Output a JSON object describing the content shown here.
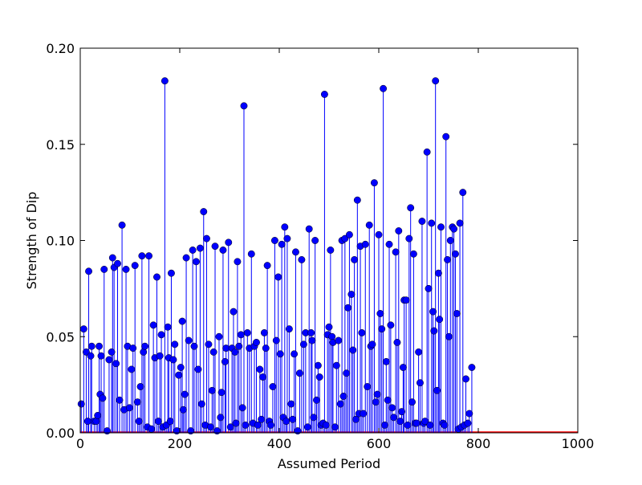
{
  "chart_data": {
    "type": "stem",
    "xlabel": "Assumed Period",
    "ylabel": "Strength of Dip",
    "xlim": [
      0,
      1000
    ],
    "ylim": [
      0,
      0.2
    ],
    "x_ticks": [
      0,
      200,
      400,
      600,
      800,
      1000
    ],
    "y_ticks": [
      0.0,
      0.05,
      0.1,
      0.15,
      0.2
    ],
    "x_tick_labels": [
      "0",
      "200",
      "400",
      "600",
      "800",
      "1000"
    ],
    "y_tick_labels": [
      "0.00",
      "0.05",
      "0.10",
      "0.15",
      "0.20"
    ],
    "grid": false,
    "series_color": "#0000ff",
    "points": [
      [
        2,
        0.015
      ],
      [
        7,
        0.054
      ],
      [
        12,
        0.042
      ],
      [
        15,
        0.006
      ],
      [
        17,
        0.084
      ],
      [
        21,
        0.04
      ],
      [
        23,
        0.045
      ],
      [
        28,
        0.006
      ],
      [
        32,
        0.006
      ],
      [
        35,
        0.009
      ],
      [
        38,
        0.045
      ],
      [
        40,
        0.02
      ],
      [
        42,
        0.04
      ],
      [
        45,
        0.018
      ],
      [
        48,
        0.085
      ],
      [
        54,
        0.001
      ],
      [
        58,
        0.038
      ],
      [
        63,
        0.042
      ],
      [
        65,
        0.091
      ],
      [
        68,
        0.086
      ],
      [
        72,
        0.036
      ],
      [
        75,
        0.088
      ],
      [
        79,
        0.017
      ],
      [
        84,
        0.108
      ],
      [
        88,
        0.012
      ],
      [
        92,
        0.085
      ],
      [
        95,
        0.045
      ],
      [
        99,
        0.013
      ],
      [
        103,
        0.033
      ],
      [
        106,
        0.044
      ],
      [
        110,
        0.087
      ],
      [
        115,
        0.016
      ],
      [
        118,
        0.006
      ],
      [
        121,
        0.024
      ],
      [
        124,
        0.092
      ],
      [
        127,
        0.042
      ],
      [
        130,
        0.045
      ],
      [
        135,
        0.003
      ],
      [
        138,
        0.092
      ],
      [
        143,
        0.002
      ],
      [
        147,
        0.056
      ],
      [
        150,
        0.039
      ],
      [
        154,
        0.081
      ],
      [
        157,
        0.006
      ],
      [
        160,
        0.04
      ],
      [
        163,
        0.051
      ],
      [
        166,
        0.003
      ],
      [
        170,
        0.183
      ],
      [
        173,
        0.004
      ],
      [
        176,
        0.055
      ],
      [
        178,
        0.039
      ],
      [
        181,
        0.006
      ],
      [
        183,
        0.083
      ],
      [
        187,
        0.038
      ],
      [
        190,
        0.046
      ],
      [
        194,
        0.001
      ],
      [
        198,
        0.03
      ],
      [
        202,
        0.034
      ],
      [
        205,
        0.058
      ],
      [
        207,
        0.012
      ],
      [
        210,
        0.02
      ],
      [
        213,
        0.091
      ],
      [
        218,
        0.048
      ],
      [
        222,
        0.001
      ],
      [
        226,
        0.095
      ],
      [
        229,
        0.045
      ],
      [
        233,
        0.089
      ],
      [
        237,
        0.033
      ],
      [
        241,
        0.096
      ],
      [
        244,
        0.015
      ],
      [
        248,
        0.115
      ],
      [
        251,
        0.004
      ],
      [
        254,
        0.101
      ],
      [
        258,
        0.046
      ],
      [
        262,
        0.003
      ],
      [
        265,
        0.022
      ],
      [
        268,
        0.042
      ],
      [
        271,
        0.097
      ],
      [
        275,
        0.001
      ],
      [
        279,
        0.05
      ],
      [
        282,
        0.008
      ],
      [
        284,
        0.021
      ],
      [
        287,
        0.095
      ],
      [
        291,
        0.037
      ],
      [
        293,
        0.044
      ],
      [
        298,
        0.099
      ],
      [
        302,
        0.003
      ],
      [
        305,
        0.044
      ],
      [
        308,
        0.063
      ],
      [
        311,
        0.042
      ],
      [
        313,
        0.005
      ],
      [
        316,
        0.089
      ],
      [
        319,
        0.045
      ],
      [
        323,
        0.051
      ],
      [
        326,
        0.013
      ],
      [
        329,
        0.17
      ],
      [
        332,
        0.004
      ],
      [
        336,
        0.052
      ],
      [
        340,
        0.044
      ],
      [
        344,
        0.093
      ],
      [
        347,
        0.005
      ],
      [
        350,
        0.045
      ],
      [
        354,
        0.047
      ],
      [
        357,
        0.004
      ],
      [
        361,
        0.033
      ],
      [
        364,
        0.007
      ],
      [
        367,
        0.029
      ],
      [
        370,
        0.052
      ],
      [
        373,
        0.044
      ],
      [
        376,
        0.087
      ],
      [
        380,
        0.006
      ],
      [
        383,
        0.004
      ],
      [
        387,
        0.024
      ],
      [
        391,
        0.1
      ],
      [
        394,
        0.048
      ],
      [
        398,
        0.081
      ],
      [
        402,
        0.041
      ],
      [
        405,
        0.098
      ],
      [
        408,
        0.008
      ],
      [
        411,
        0.107
      ],
      [
        414,
        0.006
      ],
      [
        416,
        0.101
      ],
      [
        420,
        0.054
      ],
      [
        424,
        0.015
      ],
      [
        427,
        0.007
      ],
      [
        430,
        0.041
      ],
      [
        433,
        0.094
      ],
      [
        437,
        0.001
      ],
      [
        441,
        0.031
      ],
      [
        445,
        0.09
      ],
      [
        449,
        0.046
      ],
      [
        453,
        0.052
      ],
      [
        457,
        0.003
      ],
      [
        460,
        0.106
      ],
      [
        464,
        0.052
      ],
      [
        466,
        0.048
      ],
      [
        469,
        0.008
      ],
      [
        472,
        0.1
      ],
      [
        475,
        0.017
      ],
      [
        478,
        0.035
      ],
      [
        481,
        0.029
      ],
      [
        484,
        0.004
      ],
      [
        488,
        0.005
      ],
      [
        491,
        0.176
      ],
      [
        494,
        0.004
      ],
      [
        497,
        0.051
      ],
      [
        500,
        0.055
      ],
      [
        503,
        0.095
      ],
      [
        506,
        0.05
      ],
      [
        508,
        0.047
      ],
      [
        512,
        0.003
      ],
      [
        515,
        0.035
      ],
      [
        519,
        0.048
      ],
      [
        523,
        0.015
      ],
      [
        526,
        0.1
      ],
      [
        529,
        0.019
      ],
      [
        532,
        0.101
      ],
      [
        535,
        0.031
      ],
      [
        538,
        0.065
      ],
      [
        541,
        0.103
      ],
      [
        545,
        0.072
      ],
      [
        548,
        0.043
      ],
      [
        551,
        0.09
      ],
      [
        554,
        0.007
      ],
      [
        557,
        0.121
      ],
      [
        560,
        0.01
      ],
      [
        563,
        0.097
      ],
      [
        566,
        0.052
      ],
      [
        569,
        0.01
      ],
      [
        573,
        0.098
      ],
      [
        577,
        0.024
      ],
      [
        581,
        0.108
      ],
      [
        584,
        0.045
      ],
      [
        587,
        0.046
      ],
      [
        591,
        0.13
      ],
      [
        594,
        0.016
      ],
      [
        597,
        0.02
      ],
      [
        600,
        0.103
      ],
      [
        603,
        0.062
      ],
      [
        606,
        0.054
      ],
      [
        609,
        0.179
      ],
      [
        612,
        0.004
      ],
      [
        615,
        0.037
      ],
      [
        618,
        0.017
      ],
      [
        621,
        0.098
      ],
      [
        624,
        0.056
      ],
      [
        627,
        0.013
      ],
      [
        630,
        0.008
      ],
      [
        634,
        0.094
      ],
      [
        637,
        0.047
      ],
      [
        640,
        0.105
      ],
      [
        643,
        0.006
      ],
      [
        646,
        0.011
      ],
      [
        649,
        0.034
      ],
      [
        651,
        0.069
      ],
      [
        655,
        0.069
      ],
      [
        658,
        0.004
      ],
      [
        661,
        0.101
      ],
      [
        664,
        0.117
      ],
      [
        667,
        0.016
      ],
      [
        670,
        0.093
      ],
      [
        673,
        0.005
      ],
      [
        676,
        0.005
      ],
      [
        680,
        0.042
      ],
      [
        683,
        0.026
      ],
      [
        687,
        0.11
      ],
      [
        690,
        0.005
      ],
      [
        693,
        0.006
      ],
      [
        697,
        0.146
      ],
      [
        700,
        0.075
      ],
      [
        703,
        0.004
      ],
      [
        706,
        0.109
      ],
      [
        709,
        0.063
      ],
      [
        711,
        0.053
      ],
      [
        714,
        0.183
      ],
      [
        717,
        0.022
      ],
      [
        720,
        0.083
      ],
      [
        722,
        0.059
      ],
      [
        725,
        0.107
      ],
      [
        729,
        0.005
      ],
      [
        732,
        0.004
      ],
      [
        735,
        0.154
      ],
      [
        738,
        0.09
      ],
      [
        741,
        0.05
      ],
      [
        744,
        0.1
      ],
      [
        748,
        0.107
      ],
      [
        751,
        0.106
      ],
      [
        754,
        0.093
      ],
      [
        757,
        0.062
      ],
      [
        760,
        0.002
      ],
      [
        763,
        0.109
      ],
      [
        766,
        0.003
      ],
      [
        769,
        0.125
      ],
      [
        772,
        0.004
      ],
      [
        775,
        0.028
      ],
      [
        779,
        0.005
      ],
      [
        782,
        0.01
      ],
      [
        787,
        0.034
      ]
    ]
  }
}
